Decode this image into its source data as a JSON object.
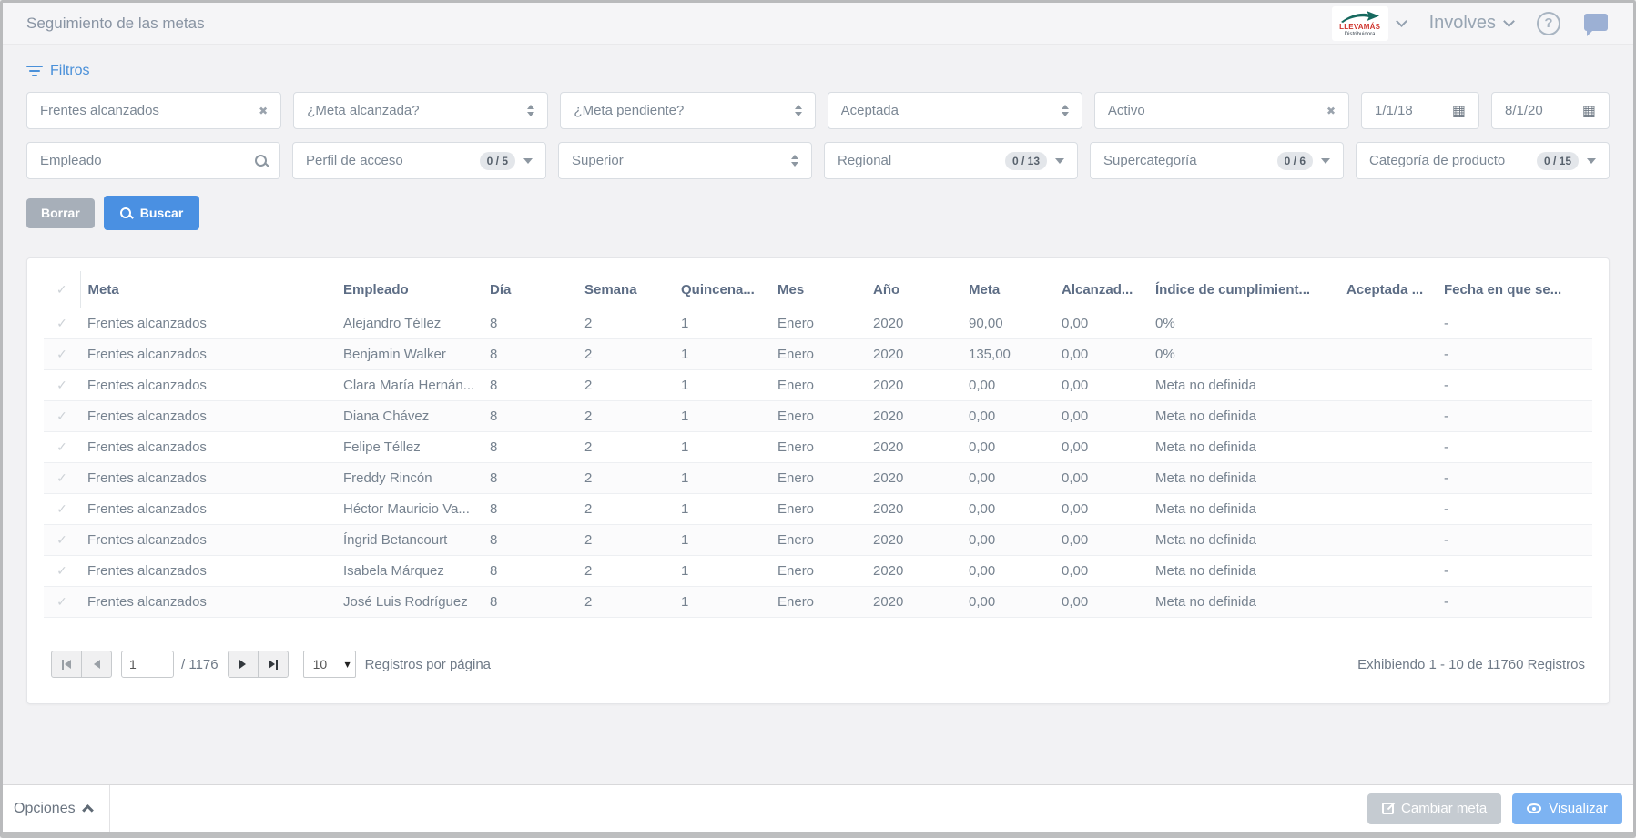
{
  "colors": {
    "accent_blue": "#4a90e2",
    "link_blue": "#4a90d9",
    "view_button_blue": "#7db3f2",
    "logo_red": "#cf332c",
    "logo_teal": "#17695f"
  },
  "header": {
    "title": "Seguimiento de las metas",
    "logo_name": "LLEVAMÁS",
    "logo_subtitle": "Distribuidora",
    "app_name": "Involves"
  },
  "filters": {
    "label": "Filtros",
    "row1": [
      {
        "value": "Frentes alcanzados",
        "icon": "clear"
      },
      {
        "value": "¿Meta alcanzada?",
        "icon": "spinner"
      },
      {
        "value": "¿Meta pendiente?",
        "icon": "spinner"
      },
      {
        "value": "Aceptada",
        "icon": "spinner"
      },
      {
        "value": "Activo",
        "icon": "clear"
      },
      {
        "value": "1/1/18",
        "icon": "calendar"
      },
      {
        "value": "8/1/20",
        "icon": "calendar"
      }
    ],
    "row2": [
      {
        "value": "Empleado",
        "icon": "search"
      },
      {
        "value": "Perfil de acceso",
        "badge": "0 / 5",
        "icon": "caret"
      },
      {
        "value": "Superior",
        "icon": "spinner"
      },
      {
        "value": "Regional",
        "badge": "0 / 13",
        "icon": "caret"
      },
      {
        "value": "Supercategoría",
        "badge": "0 / 6",
        "icon": "caret"
      },
      {
        "value": "Categoría de producto",
        "badge": "0 / 15",
        "icon": "caret"
      }
    ],
    "clear_button": "Borrar",
    "search_button": "Buscar"
  },
  "table": {
    "columns": [
      {
        "key": "meta",
        "label": "Meta"
      },
      {
        "key": "empleado",
        "label": "Empleado"
      },
      {
        "key": "dia",
        "label": "Día"
      },
      {
        "key": "semana",
        "label": "Semana"
      },
      {
        "key": "quincena",
        "label": "Quincena..."
      },
      {
        "key": "mes",
        "label": "Mes"
      },
      {
        "key": "ano",
        "label": "Año"
      },
      {
        "key": "meta-valor",
        "label": "Meta"
      },
      {
        "key": "alcanzado",
        "label": "Alcanzad..."
      },
      {
        "key": "indice-cumplimiento",
        "label": "Índice de cumplimient..."
      },
      {
        "key": "aceptada",
        "label": "Aceptada ..."
      },
      {
        "key": "fecha",
        "label": "Fecha en que se..."
      }
    ],
    "rows": [
      [
        "Frentes alcanzados",
        "Alejandro Téllez",
        "8",
        "2",
        "1",
        "Enero",
        "2020",
        "90,00",
        "0,00",
        "0%",
        "",
        "-"
      ],
      [
        "Frentes alcanzados",
        "Benjamin Walker",
        "8",
        "2",
        "1",
        "Enero",
        "2020",
        "135,00",
        "0,00",
        "0%",
        "",
        "-"
      ],
      [
        "Frentes alcanzados",
        "Clara María Hernán...",
        "8",
        "2",
        "1",
        "Enero",
        "2020",
        "0,00",
        "0,00",
        "Meta no definida",
        "",
        "-"
      ],
      [
        "Frentes alcanzados",
        "Diana Chávez",
        "8",
        "2",
        "1",
        "Enero",
        "2020",
        "0,00",
        "0,00",
        "Meta no definida",
        "",
        "-"
      ],
      [
        "Frentes alcanzados",
        "Felipe Téllez",
        "8",
        "2",
        "1",
        "Enero",
        "2020",
        "0,00",
        "0,00",
        "Meta no definida",
        "",
        "-"
      ],
      [
        "Frentes alcanzados",
        "Freddy Rincón",
        "8",
        "2",
        "1",
        "Enero",
        "2020",
        "0,00",
        "0,00",
        "Meta no definida",
        "",
        "-"
      ],
      [
        "Frentes alcanzados",
        "Héctor Mauricio Va...",
        "8",
        "2",
        "1",
        "Enero",
        "2020",
        "0,00",
        "0,00",
        "Meta no definida",
        "",
        "-"
      ],
      [
        "Frentes alcanzados",
        "Íngrid Betancourt",
        "8",
        "2",
        "1",
        "Enero",
        "2020",
        "0,00",
        "0,00",
        "Meta no definida",
        "",
        "-"
      ],
      [
        "Frentes alcanzados",
        "Isabela Márquez",
        "8",
        "2",
        "1",
        "Enero",
        "2020",
        "0,00",
        "0,00",
        "Meta no definida",
        "",
        "-"
      ],
      [
        "Frentes alcanzados",
        "José Luis Rodríguez",
        "8",
        "2",
        "1",
        "Enero",
        "2020",
        "0,00",
        "0,00",
        "Meta no definida",
        "",
        "-"
      ]
    ]
  },
  "pagination": {
    "page": "1",
    "total": "/ 1176",
    "page_size": "10",
    "page_size_label": "Registros por página",
    "summary": "Exhibiendo 1 - 10 de 11760 Registros"
  },
  "footer": {
    "options_label": "Opciones",
    "change_goal_button": "Cambiar meta",
    "view_button": "Visualizar"
  }
}
